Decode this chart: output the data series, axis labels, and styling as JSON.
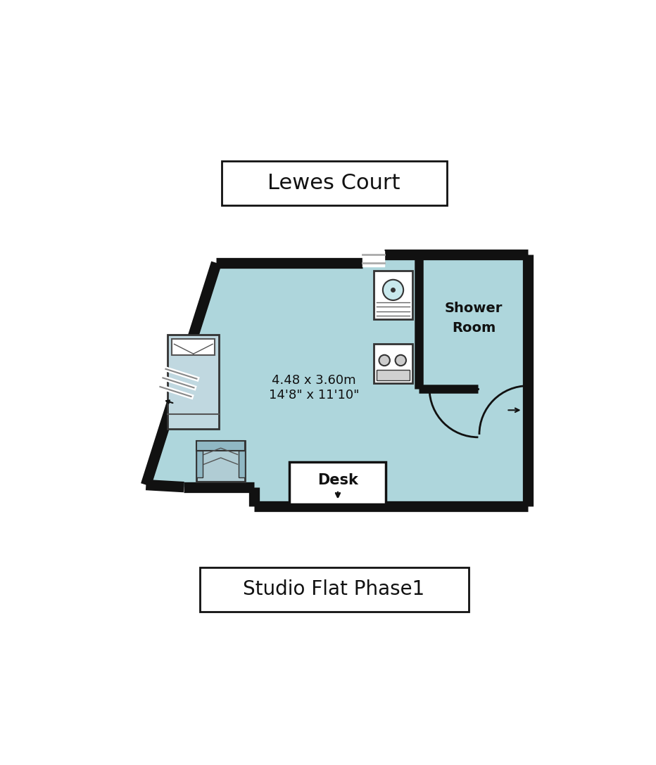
{
  "title": "Lewes Court",
  "subtitle": "Studio Flat Phase1",
  "room_label_1": "4.48 x 3.60m",
  "room_label_2": "14'8\" x 11'10\"",
  "shower_room_label": "Shower\nRoom",
  "desk_label": "Desk",
  "bg_color": "#ffffff",
  "fill_color": "#aed6dc",
  "wall_color": "#111111",
  "fixture_bg": "#ffffff",
  "fixture_color": "#333333"
}
